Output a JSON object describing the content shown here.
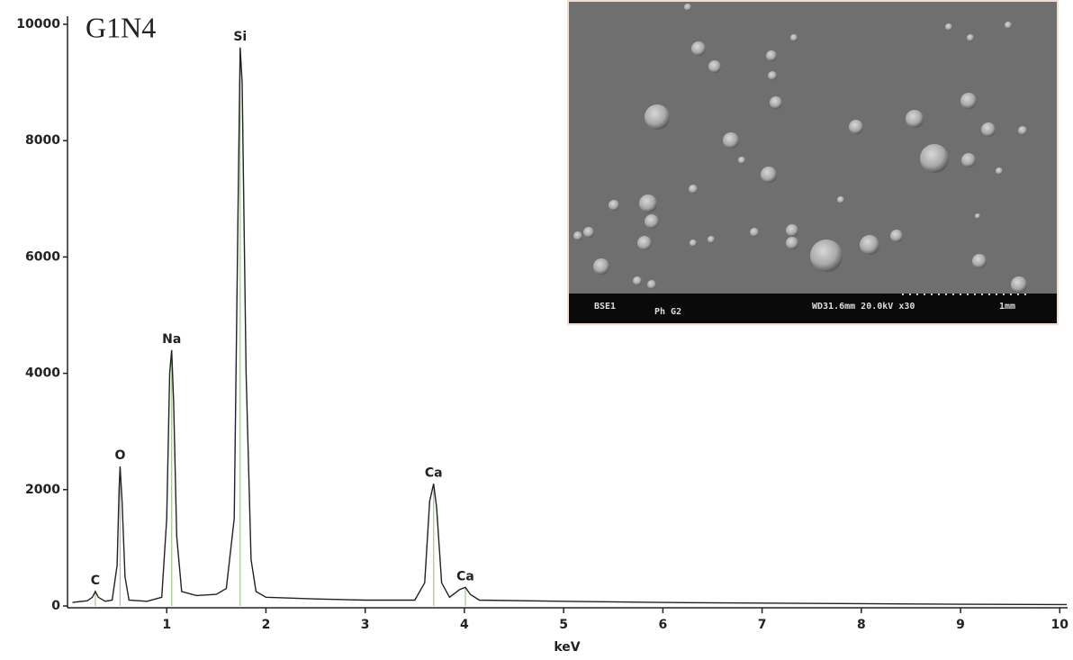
{
  "chart_data": {
    "type": "line",
    "title": "G1N4",
    "x_label": "keV",
    "x": [
      0.05,
      0.2,
      0.25,
      0.28,
      0.31,
      0.38,
      0.45,
      0.5,
      0.52,
      0.53,
      0.55,
      0.58,
      0.62,
      0.8,
      0.95,
      1.0,
      1.03,
      1.05,
      1.07,
      1.1,
      1.15,
      1.3,
      1.5,
      1.6,
      1.68,
      1.72,
      1.74,
      1.76,
      1.8,
      1.85,
      1.9,
      2.0,
      2.5,
      3.0,
      3.5,
      3.6,
      3.65,
      3.69,
      3.72,
      3.77,
      3.85,
      3.95,
      4.01,
      4.06,
      4.15,
      5,
      6,
      7,
      8,
      9,
      10,
      10.07
    ],
    "values": [
      60,
      90,
      150,
      250,
      150,
      80,
      100,
      700,
      2000,
      2400,
      1800,
      500,
      100,
      80,
      150,
      1500,
      4000,
      4400,
      3500,
      1200,
      250,
      180,
      200,
      300,
      1500,
      7000,
      9600,
      9000,
      4000,
      800,
      250,
      150,
      120,
      100,
      100,
      400,
      1800,
      2100,
      1700,
      400,
      150,
      280,
      320,
      200,
      100,
      80,
      60,
      50,
      40,
      30,
      25,
      25
    ],
    "line_color": "#222222",
    "marker_color": "#99cc88",
    "xlim": [
      0,
      10.07
    ],
    "ylim": [
      0,
      10000
    ],
    "xticks": [
      1,
      2,
      3,
      4,
      5,
      6,
      7,
      8,
      9,
      10
    ],
    "yticks": [
      0,
      2000,
      4000,
      6000,
      8000,
      10000
    ],
    "annotations": [
      {
        "text": "C",
        "x": 0.28
      },
      {
        "text": "O",
        "x": 0.53
      },
      {
        "text": "Na",
        "x": 1.05
      },
      {
        "text": "Si",
        "x": 1.74
      },
      {
        "text": "Ca",
        "x": 3.69
      },
      {
        "text": "Ca",
        "x": 4.01
      }
    ],
    "inset": {
      "labels": [
        "BSE1",
        "Ph G2",
        "WD31.6mm 20.0kV x30",
        "1mm"
      ]
    }
  }
}
